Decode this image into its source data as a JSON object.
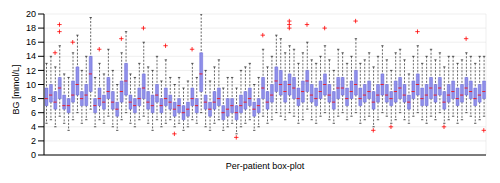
{
  "chart_data": {
    "type": "box",
    "x_label": "Per-patient box-plot",
    "y_label": "BG [mmol/L]",
    "ylim": [
      0,
      20
    ],
    "yticks": [
      0,
      2,
      4,
      6,
      8,
      10,
      12,
      14,
      16,
      18,
      20
    ],
    "grid": true,
    "tick_labels": "y",
    "color": "#8f8fe8",
    "categories": [
      null,
      null,
      null,
      null,
      null,
      null,
      null,
      null,
      null,
      null,
      null,
      null,
      null,
      null,
      null,
      null,
      null,
      null,
      null,
      null,
      null,
      null,
      null,
      null,
      null,
      null,
      null,
      null,
      null,
      null,
      null,
      null,
      null,
      null,
      null,
      null,
      null,
      null,
      null,
      null,
      null,
      null,
      null,
      null,
      null,
      null,
      null,
      null,
      null,
      null,
      null,
      null,
      null,
      null,
      null,
      null,
      null,
      null,
      null,
      null,
      null,
      null,
      null,
      null,
      null,
      null,
      null,
      null,
      null,
      null,
      null,
      null,
      null,
      null,
      null,
      null,
      null,
      null,
      null,
      null,
      null,
      null,
      null,
      null,
      null,
      null,
      null,
      null,
      null,
      null,
      null,
      null,
      null,
      null,
      null,
      null,
      null,
      null,
      null,
      null
    ],
    "boxes": [
      [
        4.5,
        7.0,
        8.0,
        9.5,
        13.0
      ],
      [
        5.0,
        7.5,
        8.5,
        10.0,
        14.0
      ],
      [
        4.0,
        6.5,
        7.5,
        9.0,
        12.5
      ],
      [
        5.5,
        8.0,
        9.5,
        11.0,
        15.5
      ],
      [
        4.5,
        6.5,
        7.0,
        8.5,
        11.5
      ],
      [
        3.5,
        6.0,
        7.0,
        8.0,
        11.0
      ],
      [
        5.0,
        7.5,
        8.5,
        10.5,
        14.5
      ],
      [
        6.0,
        8.5,
        10.0,
        12.5,
        17.0
      ],
      [
        4.5,
        7.0,
        8.0,
        9.0,
        12.0
      ],
      [
        5.0,
        7.0,
        8.5,
        10.0,
        14.0
      ],
      [
        6.5,
        9.0,
        11.5,
        14.0,
        19.5
      ],
      [
        4.0,
        6.0,
        7.0,
        8.0,
        11.0
      ],
      [
        5.0,
        7.0,
        8.0,
        9.5,
        13.0
      ],
      [
        4.5,
        6.5,
        7.5,
        8.5,
        11.5
      ],
      [
        5.5,
        8.0,
        9.0,
        11.0,
        15.0
      ],
      [
        4.0,
        6.5,
        7.5,
        9.0,
        12.0
      ],
      [
        3.5,
        5.5,
        6.5,
        7.5,
        10.0
      ],
      [
        5.0,
        7.5,
        9.0,
        10.5,
        14.5
      ],
      [
        6.0,
        8.5,
        10.5,
        13.0,
        17.5
      ],
      [
        4.5,
        6.5,
        7.5,
        8.5,
        11.5
      ],
      [
        4.0,
        6.0,
        7.0,
        8.0,
        11.0
      ],
      [
        5.0,
        7.0,
        8.0,
        9.5,
        13.0
      ],
      [
        5.5,
        8.0,
        9.5,
        11.5,
        16.0
      ],
      [
        4.5,
        6.5,
        7.5,
        9.0,
        12.5
      ],
      [
        3.5,
        6.0,
        7.0,
        8.5,
        12.0
      ],
      [
        5.0,
        7.5,
        8.5,
        10.0,
        14.0
      ],
      [
        4.0,
        6.0,
        7.0,
        8.0,
        10.5
      ],
      [
        4.5,
        7.0,
        8.0,
        9.5,
        13.5
      ],
      [
        5.0,
        6.5,
        7.5,
        8.5,
        11.0
      ],
      [
        4.0,
        5.5,
        6.5,
        7.5,
        10.0
      ],
      [
        4.5,
        6.0,
        7.0,
        8.0,
        11.0
      ],
      [
        3.5,
        5.0,
        6.0,
        7.0,
        9.5
      ],
      [
        4.0,
        5.5,
        6.5,
        7.5,
        10.5
      ],
      [
        5.0,
        7.0,
        8.0,
        9.5,
        13.0
      ],
      [
        4.5,
        6.0,
        7.0,
        8.0,
        11.0
      ],
      [
        6.0,
        9.0,
        11.5,
        14.5,
        20.0
      ],
      [
        4.0,
        6.5,
        7.5,
        8.5,
        12.0
      ],
      [
        3.5,
        5.5,
        6.5,
        7.5,
        10.5
      ],
      [
        4.5,
        6.5,
        7.5,
        9.0,
        12.5
      ],
      [
        5.0,
        7.0,
        8.0,
        9.5,
        13.5
      ],
      [
        3.5,
        5.0,
        6.0,
        7.0,
        9.5
      ],
      [
        4.0,
        5.5,
        6.5,
        8.0,
        11.0
      ],
      [
        4.5,
        6.0,
        7.0,
        8.0,
        11.0
      ],
      [
        3.0,
        5.0,
        6.0,
        7.0,
        9.5
      ],
      [
        4.0,
        6.0,
        7.0,
        8.5,
        12.0
      ],
      [
        4.5,
        6.5,
        7.5,
        9.0,
        12.5
      ],
      [
        5.0,
        7.0,
        8.0,
        9.5,
        13.0
      ],
      [
        3.5,
        5.5,
        6.5,
        7.5,
        10.0
      ],
      [
        4.0,
        6.0,
        7.0,
        8.0,
        11.0
      ],
      [
        5.5,
        8.0,
        9.5,
        11.0,
        15.0
      ],
      [
        4.5,
        6.5,
        7.5,
        9.0,
        12.5
      ],
      [
        5.0,
        7.5,
        8.5,
        10.0,
        14.0
      ],
      [
        6.0,
        9.0,
        10.5,
        12.5,
        17.0
      ],
      [
        5.5,
        8.5,
        10.0,
        12.0,
        16.5
      ],
      [
        5.0,
        7.5,
        9.0,
        10.5,
        14.5
      ],
      [
        6.0,
        8.5,
        10.0,
        11.5,
        15.5
      ],
      [
        5.5,
        8.0,
        9.5,
        11.0,
        15.0
      ],
      [
        4.5,
        7.0,
        8.0,
        9.5,
        13.0
      ],
      [
        5.0,
        7.5,
        9.0,
        10.5,
        14.5
      ],
      [
        6.5,
        9.0,
        10.5,
        12.0,
        16.0
      ],
      [
        5.0,
        7.5,
        8.5,
        10.0,
        13.5
      ],
      [
        4.5,
        7.0,
        8.0,
        9.5,
        13.0
      ],
      [
        5.5,
        8.0,
        9.0,
        10.5,
        14.0
      ],
      [
        6.0,
        8.5,
        10.0,
        11.5,
        15.5
      ],
      [
        5.0,
        7.5,
        8.5,
        10.0,
        13.5
      ],
      [
        4.5,
        6.5,
        7.5,
        9.0,
        12.0
      ],
      [
        5.5,
        8.0,
        9.5,
        11.0,
        15.0
      ],
      [
        6.0,
        8.5,
        9.5,
        11.0,
        14.5
      ],
      [
        5.0,
        7.0,
        8.0,
        9.5,
        13.0
      ],
      [
        5.5,
        8.0,
        9.0,
        10.5,
        14.0
      ],
      [
        6.0,
        8.5,
        10.0,
        12.0,
        16.5
      ],
      [
        4.5,
        7.0,
        8.0,
        9.5,
        13.0
      ],
      [
        5.0,
        7.5,
        8.5,
        10.0,
        13.5
      ],
      [
        5.5,
        8.0,
        9.0,
        10.5,
        14.5
      ],
      [
        4.0,
        6.5,
        7.5,
        9.0,
        12.5
      ],
      [
        5.0,
        7.5,
        8.5,
        10.0,
        14.0
      ],
      [
        6.0,
        8.5,
        10.0,
        11.5,
        15.5
      ],
      [
        5.5,
        7.5,
        8.5,
        10.0,
        13.5
      ],
      [
        4.5,
        7.0,
        8.0,
        9.0,
        12.0
      ],
      [
        5.0,
        7.5,
        9.0,
        10.5,
        14.5
      ],
      [
        6.0,
        8.0,
        9.5,
        11.0,
        15.0
      ],
      [
        5.0,
        7.5,
        8.5,
        10.0,
        13.5
      ],
      [
        4.5,
        6.5,
        7.5,
        8.5,
        11.5
      ],
      [
        5.5,
        8.0,
        9.0,
        10.5,
        14.0
      ],
      [
        6.0,
        8.5,
        10.0,
        11.5,
        15.5
      ],
      [
        5.0,
        7.0,
        8.0,
        9.5,
        13.0
      ],
      [
        4.5,
        7.0,
        8.5,
        10.0,
        14.0
      ],
      [
        5.5,
        8.0,
        9.5,
        11.0,
        15.0
      ],
      [
        5.0,
        7.5,
        8.5,
        10.0,
        13.5
      ],
      [
        6.0,
        8.5,
        9.5,
        11.0,
        14.5
      ],
      [
        4.5,
        6.5,
        7.5,
        9.0,
        12.5
      ],
      [
        5.0,
        7.5,
        8.5,
        10.0,
        14.0
      ],
      [
        5.5,
        8.0,
        9.0,
        10.5,
        14.0
      ],
      [
        4.5,
        7.0,
        8.0,
        9.5,
        13.0
      ],
      [
        5.0,
        7.5,
        8.5,
        10.0,
        13.5
      ],
      [
        6.0,
        8.5,
        9.5,
        11.0,
        14.5
      ],
      [
        5.5,
        8.0,
        9.0,
        10.5,
        14.0
      ],
      [
        4.5,
        7.0,
        8.0,
        9.5,
        13.0
      ],
      [
        5.0,
        7.5,
        8.5,
        10.0,
        14.0
      ],
      [
        5.5,
        8.0,
        9.0,
        10.5,
        14.0
      ]
    ],
    "outliers": [
      [
        2,
        14.5
      ],
      [
        3,
        17.5
      ],
      [
        3,
        18.5
      ],
      [
        6,
        16.0
      ],
      [
        12,
        15.0
      ],
      [
        17,
        16.5
      ],
      [
        22,
        18.0
      ],
      [
        27,
        15.5
      ],
      [
        29,
        3.0
      ],
      [
        33,
        15.0
      ],
      [
        43,
        2.5
      ],
      [
        49,
        17.0
      ],
      [
        55,
        18.0
      ],
      [
        55,
        18.5
      ],
      [
        55,
        19.0
      ],
      [
        59,
        18.5
      ],
      [
        63,
        18.0
      ],
      [
        70,
        19.0
      ],
      [
        74,
        3.5
      ],
      [
        78,
        4.0
      ],
      [
        84,
        17.5
      ],
      [
        90,
        4.0
      ],
      [
        95,
        16.5
      ],
      [
        99,
        3.5
      ]
    ]
  }
}
